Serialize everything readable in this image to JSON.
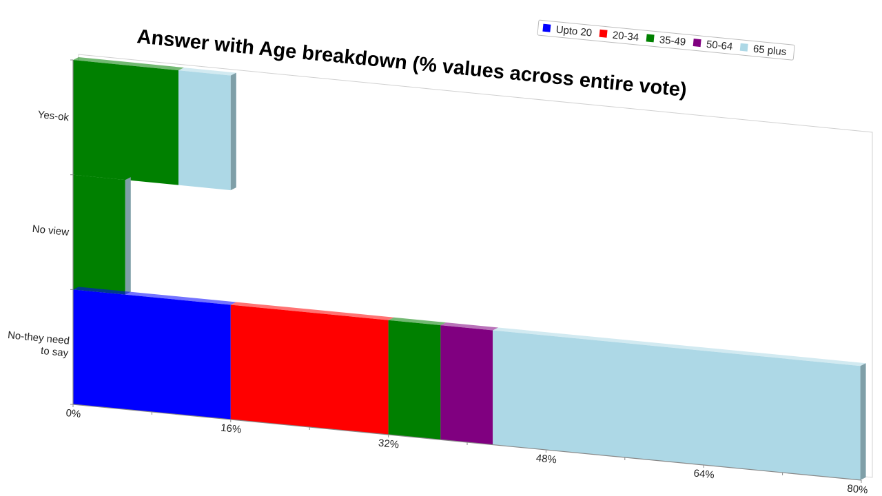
{
  "chart_data": {
    "type": "bar",
    "orientation": "horizontal",
    "stacked": true,
    "title": "Answer with Age breakdown (% values across entire vote)",
    "categories": [
      "Yes-ok",
      "No view",
      "No-they need to say"
    ],
    "category_lines": [
      [
        "Yes-ok"
      ],
      [
        "No view"
      ],
      [
        "No-they need",
        "to say"
      ]
    ],
    "series": [
      {
        "name": "Upto 20",
        "color": "#0000ff",
        "values": [
          0,
          0,
          16
        ]
      },
      {
        "name": "20-34",
        "color": "#ff0000",
        "values": [
          0,
          0,
          16
        ]
      },
      {
        "name": "35-49",
        "color": "#008000",
        "values": [
          10.7,
          5.3,
          5.3
        ]
      },
      {
        "name": "50-64",
        "color": "#800080",
        "values": [
          0,
          0,
          5.3
        ]
      },
      {
        "name": "65 plus",
        "color": "#add8e6",
        "values": [
          5.3,
          0,
          37.3
        ]
      }
    ],
    "xlim": [
      0,
      80
    ],
    "x_ticks": [
      0,
      16,
      32,
      48,
      64,
      80
    ],
    "x_tick_labels": [
      "0%",
      "16%",
      "32%",
      "48%",
      "64%",
      "80%"
    ],
    "legend_position": "top-right",
    "grid": false
  }
}
